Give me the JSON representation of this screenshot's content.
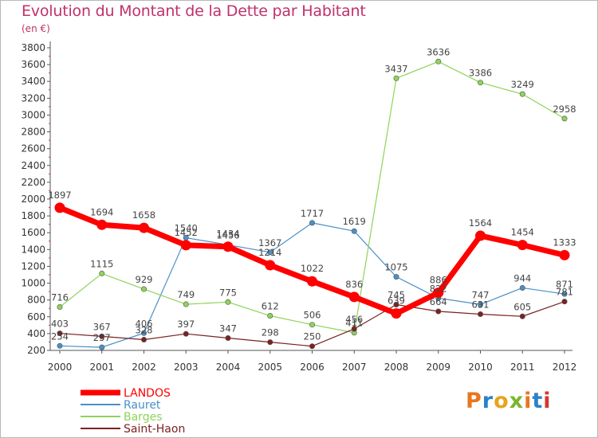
{
  "title": "Evolution du Montant de la Dette par Habitant",
  "subtitle": "(en €)",
  "logo": {
    "text": "Proxiti",
    "letter_colors": [
      "#e8761e",
      "#2a82c9",
      "#e8a31e",
      "#7ab52c",
      "#e8761e",
      "#2a82c9",
      "#d23a2b"
    ]
  },
  "chart_data": {
    "type": "line",
    "title": "Evolution du Montant de la Dette par Habitant",
    "subtitle": "(en €)",
    "x": [
      "2000",
      "2001",
      "2002",
      "2003",
      "2004",
      "2005",
      "2006",
      "2007",
      "2008",
      "2009",
      "2010",
      "2011",
      "2012"
    ],
    "ylim": [
      200,
      3800
    ],
    "yticks": [
      200,
      400,
      600,
      800,
      1000,
      1200,
      1400,
      1600,
      1800,
      2000,
      2200,
      2400,
      2600,
      2800,
      3000,
      3200,
      3400,
      3600,
      3800
    ],
    "grid": false,
    "legend_position": "bottom-left",
    "series": [
      {
        "name": "LANDOS",
        "color": "#ff0000",
        "values": [
          1897,
          1694,
          1658,
          1452,
          1434,
          1214,
          1022,
          836,
          639,
          886,
          1564,
          1454,
          1333
        ]
      },
      {
        "name": "Rauret",
        "color": "#4a90c8",
        "values": [
          254,
          237,
          406,
          1540,
          1456,
          1367,
          1717,
          1619,
          1075,
          822,
          747,
          944,
          871
        ]
      },
      {
        "name": "Barges",
        "color": "#8ed35a",
        "values": [
          716,
          1115,
          929,
          749,
          775,
          612,
          506,
          411,
          3437,
          3636,
          3386,
          3249,
          2958
        ]
      },
      {
        "name": "Saint-Haon",
        "color": "#7a2222",
        "values": [
          403,
          367,
          328,
          397,
          347,
          298,
          250,
          456,
          745,
          664,
          631,
          605,
          781
        ]
      }
    ]
  }
}
